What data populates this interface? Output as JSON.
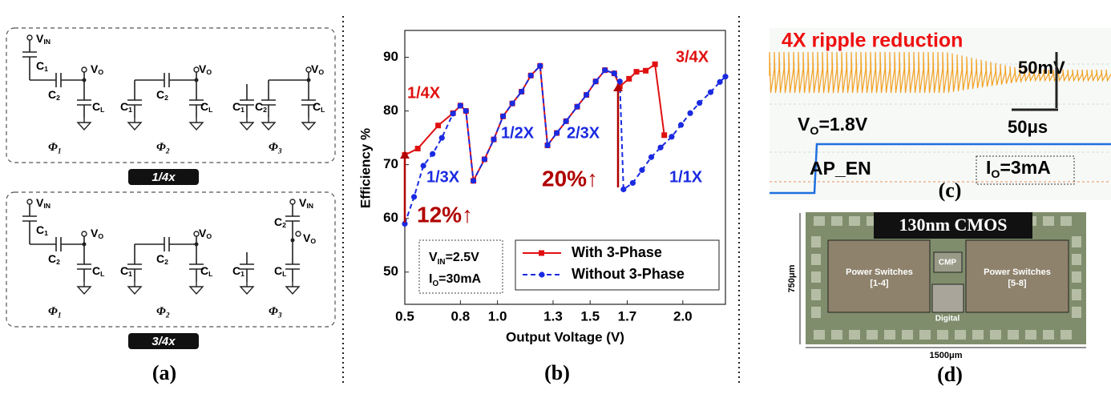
{
  "chart_data": {
    "type": "line",
    "x_label": "Output Voltage (V)",
    "y_label": "Efficiency %",
    "caption": "(b)",
    "xlim": [
      0.5,
      2.23
    ],
    "ylim": [
      44,
      95
    ],
    "xticks": [
      0.5,
      0.8,
      {
        "value": 1,
        "label": "1.0"
      },
      1.3,
      1.5,
      1.7,
      {
        "value": 2,
        "label": "2.0"
      }
    ],
    "yticks": [
      50,
      60,
      70,
      80,
      90
    ],
    "grid": false,
    "series": [
      {
        "name": "With 3-Phase",
        "color": "#e01010",
        "marker": "square",
        "dash": false,
        "x": [
          0.5,
          0.57,
          0.68,
          0.76,
          0.8,
          0.83,
          0.87,
          0.93,
          0.98,
          1.03,
          1.08,
          1.13,
          1.18,
          1.23,
          1.27,
          1.32,
          1.37,
          1.43,
          1.48,
          1.53,
          1.58,
          1.63,
          1.66,
          1.71,
          1.75,
          1.8,
          1.85,
          1.9
        ],
        "values": [
          71.8,
          73,
          77.3,
          79.6,
          81,
          80,
          67,
          71,
          74.7,
          79,
          81.4,
          83.6,
          86.6,
          88.4,
          73.6,
          75.9,
          78.1,
          80.8,
          83,
          85.5,
          87.6,
          87,
          84.6,
          86,
          87.3,
          87.5,
          88.7,
          75.5
        ]
      },
      {
        "name": "Without 3-Phase",
        "color": "#1a2ae0",
        "marker": "circle",
        "dash": true,
        "x": [
          0.5,
          0.55,
          0.6,
          0.65,
          0.7,
          0.76,
          0.8,
          0.83,
          0.87,
          0.93,
          0.98,
          1.03,
          1.08,
          1.13,
          1.18,
          1.23,
          1.27,
          1.32,
          1.37,
          1.43,
          1.48,
          1.53,
          1.58,
          1.63,
          1.66,
          1.68,
          1.73,
          1.78,
          1.83,
          1.88,
          1.94,
          1.99,
          2.04,
          2.09,
          2.15,
          2.2,
          2.23
        ],
        "values": [
          59,
          64,
          69.8,
          72,
          75,
          79.5,
          81,
          80,
          67,
          71,
          74.7,
          79,
          81.4,
          83.6,
          86.6,
          88.4,
          73.6,
          75.9,
          78.1,
          80.8,
          83,
          85.5,
          87.6,
          87,
          85.5,
          65.4,
          66.6,
          69,
          71.4,
          73.2,
          75.2,
          77.4,
          79.6,
          81.5,
          83.5,
          85.4,
          86.4
        ]
      }
    ],
    "annotations": [
      {
        "text": "1/4X",
        "color": "#e01010"
      },
      {
        "text": "1/3X",
        "color": "#1a2ae0"
      },
      {
        "text": "1/2X",
        "color": "#1a2ae0"
      },
      {
        "text": "2/3X",
        "color": "#1a2ae0"
      },
      {
        "text": "3/4X",
        "color": "#e01010"
      },
      {
        "text": "1/1X",
        "color": "#1a2ae0"
      },
      {
        "text": "12%↑",
        "color": "#b00000"
      },
      {
        "text": "20%↑",
        "color": "#b00000"
      }
    ],
    "conditions": [
      {
        "t": "V",
        "s": "IN",
        "r": "=2.5V"
      },
      {
        "t": "I",
        "s": "O",
        "r": "=30mA"
      }
    ]
  },
  "panel_a": {
    "caption": "(a)",
    "groups": [
      {
        "mode": "1/4x",
        "phases": [
          {
            "name": {
              "t": "Φ",
              "s": "1"
            },
            "labels": [
              {
                "t": "V",
                "s": "IN"
              },
              {
                "t": "C",
                "s": "1"
              },
              {
                "t": "V",
                "s": "O"
              },
              {
                "t": "C",
                "s": "2"
              },
              {
                "t": "C",
                "s": "L"
              }
            ]
          },
          {
            "name": {
              "t": "Φ",
              "s": "2"
            },
            "labels": [
              {
                "t": "C",
                "s": "1"
              },
              {
                "t": "C",
                "s": "2"
              },
              {
                "t": "V",
                "s": "O"
              },
              {
                "t": "C",
                "s": "L"
              }
            ]
          },
          {
            "name": {
              "t": "Φ",
              "s": "3"
            },
            "labels": [
              {
                "t": "V",
                "s": "O"
              },
              {
                "t": "C",
                "s": "1"
              },
              {
                "t": "C",
                "s": "2"
              },
              {
                "t": "C",
                "s": "L"
              }
            ]
          }
        ]
      },
      {
        "mode": "3/4x",
        "phases": [
          {
            "name": {
              "t": "Φ",
              "s": "1"
            },
            "labels": [
              {
                "t": "V",
                "s": "IN"
              },
              {
                "t": "C",
                "s": "1"
              },
              {
                "t": "V",
                "s": "O"
              },
              {
                "t": "C",
                "s": "2"
              },
              {
                "t": "C",
                "s": "L"
              }
            ]
          },
          {
            "name": {
              "t": "Φ",
              "s": "2"
            },
            "labels": [
              {
                "t": "C",
                "s": "1"
              },
              {
                "t": "C",
                "s": "2"
              },
              {
                "t": "V",
                "s": "O"
              },
              {
                "t": "C",
                "s": "L"
              }
            ]
          },
          {
            "name": {
              "t": "Φ",
              "s": "3"
            },
            "labels": [
              {
                "t": "V",
                "s": "IN"
              },
              {
                "t": "C",
                "s": "2"
              },
              {
                "t": "V",
                "s": "O"
              },
              {
                "t": "C",
                "s": "1"
              },
              {
                "t": "C",
                "s": "L"
              }
            ]
          }
        ]
      }
    ]
  },
  "panel_c": {
    "title": "4X ripple reduction",
    "vscale": "50mV",
    "tscale": "50μs",
    "vout": {
      "t": "V",
      "s": "O",
      "r": "=1.8V"
    },
    "signal": "AP_EN",
    "iout": {
      "t": "I",
      "s": "O",
      "r": "=3mA"
    },
    "caption": "(c)"
  },
  "panel_d": {
    "label": "130nm CMOS",
    "left_block": [
      "Power Switches",
      "[1-4]"
    ],
    "cmp": "CMP",
    "right_block": [
      "Power Switches",
      "[5-8]"
    ],
    "digital": "Digital",
    "height": "750μm",
    "width": "1500μm",
    "caption": "(d)"
  }
}
